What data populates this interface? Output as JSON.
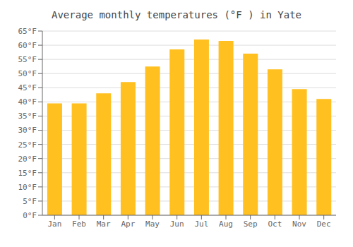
{
  "chart_data": {
    "type": "bar",
    "title": "Average monthly temperatures (°F ) in Yate",
    "categories": [
      "Jan",
      "Feb",
      "Mar",
      "Apr",
      "May",
      "Jun",
      "Jul",
      "Aug",
      "Sep",
      "Oct",
      "Nov",
      "Dec"
    ],
    "values": [
      39.5,
      39.5,
      43,
      47,
      52.5,
      58.5,
      62,
      61.5,
      57,
      51.5,
      44.5,
      41
    ],
    "color": "#FFC020",
    "ylim": [
      0,
      65
    ],
    "yticks": [
      {
        "value": 0,
        "label": "0°F"
      },
      {
        "value": 5,
        "label": "5°F"
      },
      {
        "value": 10,
        "label": "10°F"
      },
      {
        "value": 15,
        "label": "15°F"
      },
      {
        "value": 20,
        "label": "20°F"
      },
      {
        "value": 25,
        "label": "25°F"
      },
      {
        "value": 30,
        "label": "30°F"
      },
      {
        "value": 35,
        "label": "35°F"
      },
      {
        "value": 40,
        "label": "40°F"
      },
      {
        "value": 45,
        "label": "45°F"
      },
      {
        "value": 50,
        "label": "50°F"
      },
      {
        "value": 55,
        "label": "55°F"
      },
      {
        "value": 60,
        "label": "60°F"
      },
      {
        "value": 65,
        "label": "65°F"
      }
    ],
    "grid": true
  }
}
